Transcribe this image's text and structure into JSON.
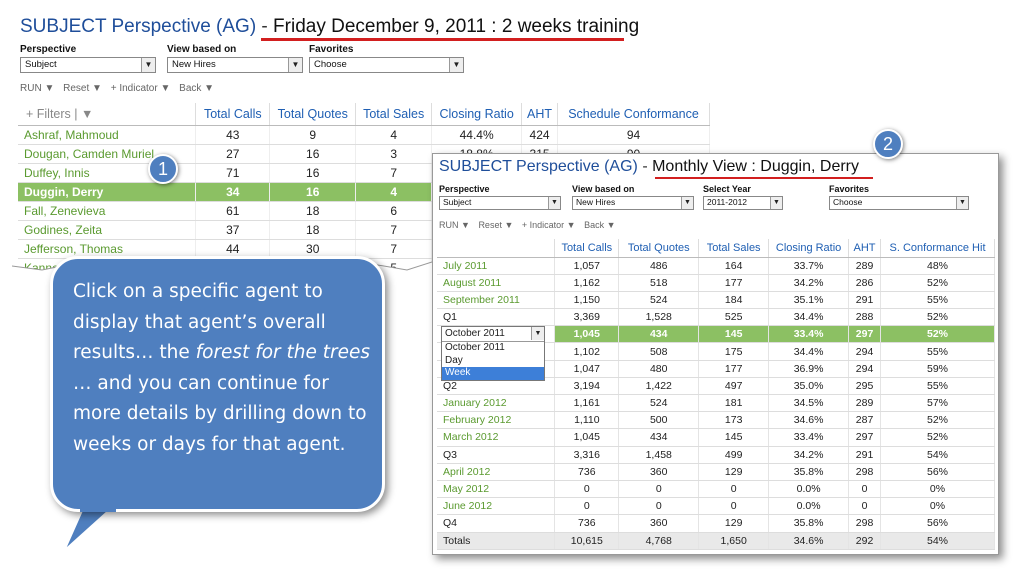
{
  "panel1": {
    "title_main": "SUBJECT Perspective (AG)",
    "title_sep": " - ",
    "title_detail": "Friday December 9, 2011 : 2 weeks training",
    "perspective": {
      "label": "Perspective",
      "value": "Subject"
    },
    "view_based_on": {
      "label": "View based on",
      "value": "New Hires"
    },
    "favorites": {
      "label": "Favorites",
      "value": "Choose"
    },
    "toolbar": {
      "run": "RUN ▼",
      "reset": "Reset ▼",
      "indicator": "+ Indicator ▼",
      "back": "Back ▼"
    },
    "columns": [
      "+ Filters  |  ▼",
      "Total Calls",
      "Total Quotes",
      "Total Sales",
      "Closing Ratio",
      "AHT",
      "Schedule Conformance"
    ],
    "rows": [
      [
        "Ashraf, Mahmoud",
        "43",
        "9",
        "4",
        "44.4%",
        "424",
        "94"
      ],
      [
        "Dougan, Camden Muriel",
        "27",
        "16",
        "3",
        "18.8%",
        "315",
        "90"
      ],
      [
        "Duffey, Innis",
        "71",
        "16",
        "7",
        "",
        "",
        ""
      ],
      [
        "Duggin, Derry",
        "34",
        "16",
        "4",
        "",
        "",
        ""
      ],
      [
        "Fall, Zenevieva",
        "61",
        "18",
        "6",
        "",
        "",
        ""
      ],
      [
        "Godines, Zeita",
        "37",
        "18",
        "7",
        "",
        "",
        ""
      ],
      [
        "Jefferson, Thomas",
        "44",
        "30",
        "7",
        "",
        "",
        ""
      ],
      [
        "Kanne",
        "",
        "",
        "5",
        "",
        "",
        ""
      ]
    ]
  },
  "panel2": {
    "title_main": "SUBJECT Perspective (AG)",
    "title_sep": " - ",
    "title_detail": "Monthly View : Duggin, Derry",
    "perspective": {
      "label": "Perspective",
      "value": "Subject"
    },
    "view_based_on": {
      "label": "View based on",
      "value": "New Hires"
    },
    "select_year": {
      "label": "Select Year",
      "value": "2011-2012"
    },
    "favorites": {
      "label": "Favorites",
      "value": "Choose"
    },
    "toolbar": {
      "run": "RUN ▼",
      "reset": "Reset ▼",
      "indicator": "+ Indicator ▼",
      "back": "Back ▼"
    },
    "columns": [
      "",
      "Total Calls",
      "Total Quotes",
      "Total Sales",
      "Closing Ratio",
      "AHT",
      "S. Conformance Hit"
    ],
    "rows": [
      [
        "July 2011",
        "1,057",
        "486",
        "164",
        "33.7%",
        "289",
        "48%"
      ],
      [
        "August 2011",
        "1,162",
        "518",
        "177",
        "34.2%",
        "286",
        "52%"
      ],
      [
        "September 2011",
        "1,150",
        "524",
        "184",
        "35.1%",
        "291",
        "55%"
      ],
      [
        "Q1",
        "3,369",
        "1,528",
        "525",
        "34.4%",
        "288",
        "52%"
      ],
      [
        "October 2011",
        "1,045",
        "434",
        "145",
        "33.4%",
        "297",
        "52%"
      ],
      [
        "",
        "1,102",
        "508",
        "175",
        "34.4%",
        "294",
        "55%"
      ],
      [
        "",
        "1,047",
        "480",
        "177",
        "36.9%",
        "294",
        "59%"
      ],
      [
        "Q2",
        "3,194",
        "1,422",
        "497",
        "35.0%",
        "295",
        "55%"
      ],
      [
        "January 2012",
        "1,161",
        "524",
        "181",
        "34.5%",
        "289",
        "57%"
      ],
      [
        "February 2012",
        "1,110",
        "500",
        "173",
        "34.6%",
        "287",
        "52%"
      ],
      [
        "March 2012",
        "1,045",
        "434",
        "145",
        "33.4%",
        "297",
        "52%"
      ],
      [
        "Q3",
        "3,316",
        "1,458",
        "499",
        "34.2%",
        "291",
        "54%"
      ],
      [
        "April 2012",
        "736",
        "360",
        "129",
        "35.8%",
        "298",
        "56%"
      ],
      [
        "May 2012",
        "0",
        "0",
        "0",
        "0.0%",
        "0",
        "0%"
      ],
      [
        "June 2012",
        "0",
        "0",
        "0",
        "0.0%",
        "0",
        "0%"
      ],
      [
        "Q4",
        "736",
        "360",
        "129",
        "35.8%",
        "298",
        "56%"
      ],
      [
        "Totals",
        "10,615",
        "4,768",
        "1,650",
        "34.6%",
        "292",
        "54%"
      ]
    ],
    "dropdown": {
      "current": "October 2011",
      "options": [
        "October 2011",
        "Day",
        "Week"
      ],
      "selected": "Week"
    }
  },
  "callout": {
    "text_a": "Click on a specific agent to display that agent’s overall results… the ",
    "text_em": "forest for the trees",
    "text_b": " … and you can continue for more details by drilling down to weeks or days for that agent."
  },
  "badges": {
    "one": "1",
    "two": "2"
  },
  "colors": {
    "title_blue": "#1f4e9a",
    "header_blue": "#1f5fb3",
    "agent_green": "#5a9a2f",
    "highlight_green": "#8cc063",
    "callout_blue": "#4f7fbf",
    "underline_red": "#d21f1f"
  }
}
